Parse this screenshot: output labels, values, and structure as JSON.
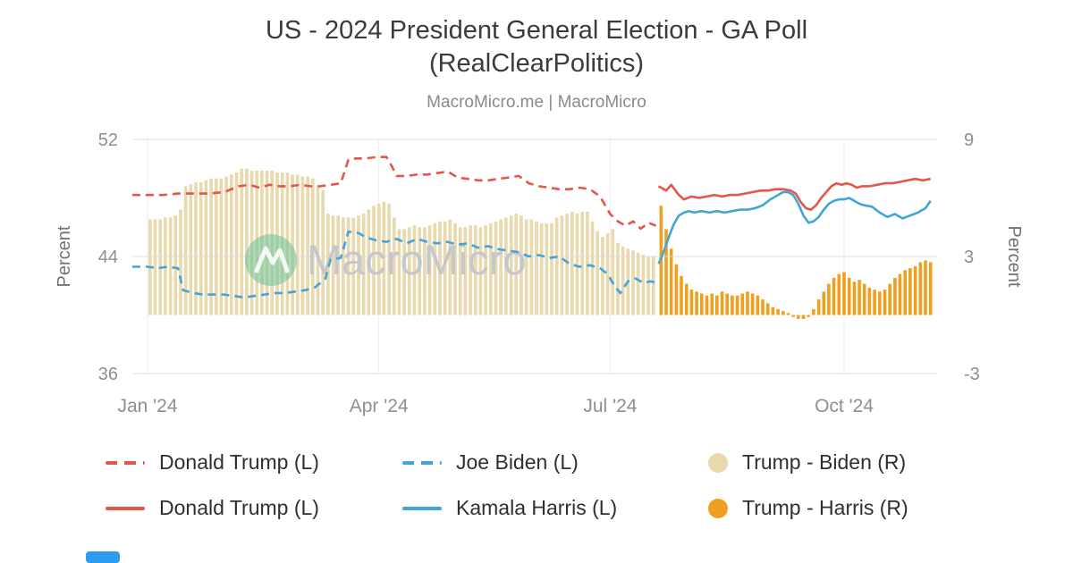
{
  "page": {
    "title_line1": "US - 2024 President General Election - GA Poll",
    "title_line2": "(RealClearPolitics)",
    "subtitle": "MacroMicro.me | MacroMicro",
    "watermark": "MacroMicro"
  },
  "chart_data": {
    "type": "line+bar",
    "title": "US - 2024 President General Election - GA Poll (RealClearPolitics)",
    "x_axis": {
      "unit": "days_from_2024-01-01",
      "ticks": [
        {
          "day": 0,
          "label": "Jan '24"
        },
        {
          "day": 91,
          "label": "Apr '24"
        },
        {
          "day": 182,
          "label": "Jul '24"
        },
        {
          "day": 274,
          "label": "Oct '24"
        }
      ]
    },
    "y_left": {
      "label": "Percent",
      "min": 36,
      "max": 52,
      "ticks": [
        52,
        44,
        36
      ]
    },
    "y_right": {
      "label": "Percent",
      "min": -3,
      "max": 9,
      "ticks": [
        9,
        3,
        -3
      ]
    },
    "series": [
      {
        "id": "trump-biden-spread",
        "name": "Trump - Biden (R)",
        "type": "bar",
        "axis": "right",
        "color": "#ead9ad",
        "start_day": 1,
        "step_days": 2,
        "values": [
          4.9,
          4.9,
          4.9,
          5.0,
          5.0,
          5.1,
          5.4,
          6.6,
          6.7,
          6.8,
          6.8,
          6.9,
          7.0,
          7.0,
          7.0,
          7.1,
          7.2,
          7.3,
          7.5,
          7.5,
          7.4,
          7.4,
          7.4,
          7.4,
          7.4,
          7.3,
          7.3,
          7.3,
          7.2,
          7.2,
          7.1,
          7.1,
          7.0,
          6.6,
          6.4,
          5.2,
          5.1,
          5.1,
          5.0,
          5.0,
          5.0,
          5.1,
          5.2,
          5.4,
          5.6,
          5.7,
          5.8,
          5.7,
          5.0,
          4.4,
          4.4,
          4.5,
          4.6,
          4.5,
          4.5,
          4.6,
          4.7,
          4.8,
          4.8,
          4.9,
          4.7,
          4.5,
          4.5,
          4.6,
          4.6,
          4.5,
          4.6,
          4.7,
          4.8,
          4.9,
          5.0,
          5.1,
          5.2,
          5.1,
          4.9,
          4.9,
          4.8,
          4.7,
          4.7,
          4.7,
          5.0,
          5.1,
          5.2,
          5.3,
          5.2,
          5.3,
          5.3,
          4.8,
          4.3,
          4.0,
          4.2,
          4.4,
          3.7,
          3.5,
          3.4,
          3.3,
          3.2,
          3.1,
          3.0,
          3.0
        ]
      },
      {
        "id": "trump-harris-spread",
        "name": "Trump - Harris (R)",
        "type": "bar",
        "axis": "right",
        "color": "#efa020",
        "start_day": 202,
        "step_days": 2,
        "values": [
          5.6,
          4.4,
          3.4,
          2.6,
          2.0,
          1.6,
          1.3,
          1.2,
          1.1,
          1.0,
          1.1,
          1.0,
          1.2,
          1.1,
          1.0,
          1.0,
          1.1,
          1.2,
          1.1,
          1.0,
          0.8,
          0.6,
          0.4,
          0.3,
          0.2,
          0.1,
          -0.1,
          -0.2,
          -0.2,
          -0.1,
          0.3,
          0.8,
          1.2,
          1.6,
          1.9,
          2.1,
          2.2,
          1.9,
          1.7,
          1.8,
          1.6,
          1.4,
          1.3,
          1.2,
          1.3,
          1.6,
          1.9,
          2.1,
          2.3,
          2.4,
          2.5,
          2.7,
          2.8,
          2.7
        ]
      },
      {
        "id": "trump-dashed",
        "name": "Donald Trump (L)",
        "type": "line",
        "style": "dashed",
        "axis": "left",
        "color": "#e2574a",
        "points": [
          [
            -6,
            48.2
          ],
          [
            0,
            48.2
          ],
          [
            6,
            48.2
          ],
          [
            12,
            48.3
          ],
          [
            18,
            48.3
          ],
          [
            24,
            48.3
          ],
          [
            30,
            48.4
          ],
          [
            36,
            48.8
          ],
          [
            40,
            48.9
          ],
          [
            44,
            48.7
          ],
          [
            48,
            48.9
          ],
          [
            52,
            48.8
          ],
          [
            56,
            48.8
          ],
          [
            60,
            48.9
          ],
          [
            64,
            48.8
          ],
          [
            68,
            48.8
          ],
          [
            72,
            48.9
          ],
          [
            76,
            49.0
          ],
          [
            79,
            50.6
          ],
          [
            82,
            50.7
          ],
          [
            86,
            50.7
          ],
          [
            90,
            50.8
          ],
          [
            94,
            50.8
          ],
          [
            96,
            50.2
          ],
          [
            98,
            49.5
          ],
          [
            102,
            49.5
          ],
          [
            106,
            49.6
          ],
          [
            110,
            49.6
          ],
          [
            114,
            49.7
          ],
          [
            118,
            49.8
          ],
          [
            122,
            49.4
          ],
          [
            126,
            49.3
          ],
          [
            130,
            49.2
          ],
          [
            134,
            49.2
          ],
          [
            138,
            49.3
          ],
          [
            142,
            49.4
          ],
          [
            146,
            49.5
          ],
          [
            150,
            49.0
          ],
          [
            154,
            48.8
          ],
          [
            158,
            48.7
          ],
          [
            162,
            48.6
          ],
          [
            166,
            48.6
          ],
          [
            170,
            48.7
          ],
          [
            174,
            48.6
          ],
          [
            178,
            48.1
          ],
          [
            182,
            46.9
          ],
          [
            185,
            46.4
          ],
          [
            188,
            46.1
          ],
          [
            191,
            46.4
          ],
          [
            194,
            45.9
          ],
          [
            197,
            46.3
          ],
          [
            200,
            46.1
          ]
        ]
      },
      {
        "id": "biden-dashed",
        "name": "Joe Biden (L)",
        "type": "line",
        "style": "dashed",
        "axis": "left",
        "color": "#41a5d6",
        "points": [
          [
            -6,
            43.3
          ],
          [
            0,
            43.3
          ],
          [
            4,
            43.2
          ],
          [
            8,
            43.3
          ],
          [
            12,
            43.2
          ],
          [
            14,
            41.7
          ],
          [
            18,
            41.5
          ],
          [
            22,
            41.4
          ],
          [
            26,
            41.4
          ],
          [
            30,
            41.4
          ],
          [
            34,
            41.3
          ],
          [
            38,
            41.2
          ],
          [
            42,
            41.3
          ],
          [
            46,
            41.4
          ],
          [
            50,
            41.5
          ],
          [
            54,
            41.5
          ],
          [
            58,
            41.6
          ],
          [
            62,
            41.7
          ],
          [
            66,
            41.9
          ],
          [
            70,
            42.5
          ],
          [
            72,
            43.8
          ],
          [
            76,
            43.9
          ],
          [
            79,
            45.7
          ],
          [
            83,
            45.6
          ],
          [
            86,
            45.3
          ],
          [
            90,
            45.1
          ],
          [
            94,
            45.0
          ],
          [
            98,
            45.2
          ],
          [
            102,
            44.9
          ],
          [
            106,
            45.2
          ],
          [
            110,
            45.0
          ],
          [
            114,
            44.9
          ],
          [
            118,
            45.0
          ],
          [
            122,
            44.8
          ],
          [
            126,
            44.9
          ],
          [
            130,
            44.6
          ],
          [
            134,
            44.7
          ],
          [
            138,
            44.5
          ],
          [
            142,
            44.4
          ],
          [
            146,
            44.3
          ],
          [
            150,
            44.0
          ],
          [
            154,
            44.1
          ],
          [
            158,
            43.9
          ],
          [
            162,
            44.0
          ],
          [
            166,
            43.5
          ],
          [
            170,
            43.3
          ],
          [
            174,
            43.4
          ],
          [
            178,
            43.2
          ],
          [
            181,
            42.8
          ],
          [
            184,
            41.9
          ],
          [
            186,
            41.5
          ],
          [
            189,
            42.3
          ],
          [
            192,
            42.5
          ],
          [
            195,
            42.2
          ],
          [
            198,
            42.3
          ],
          [
            200,
            42.2
          ]
        ]
      },
      {
        "id": "trump-solid",
        "name": "Donald Trump (L)",
        "type": "line",
        "style": "solid",
        "axis": "left",
        "color": "#e2574a",
        "points": [
          [
            201,
            48.8
          ],
          [
            204,
            48.5
          ],
          [
            206,
            48.9
          ],
          [
            209,
            48.2
          ],
          [
            211,
            47.9
          ],
          [
            214,
            48.1
          ],
          [
            217,
            48.0
          ],
          [
            220,
            48.1
          ],
          [
            223,
            48.2
          ],
          [
            226,
            48.1
          ],
          [
            229,
            48.2
          ],
          [
            232,
            48.2
          ],
          [
            235,
            48.3
          ],
          [
            238,
            48.4
          ],
          [
            241,
            48.5
          ],
          [
            244,
            48.5
          ],
          [
            247,
            48.6
          ],
          [
            250,
            48.6
          ],
          [
            253,
            48.5
          ],
          [
            255,
            48.3
          ],
          [
            257,
            47.7
          ],
          [
            259,
            47.3
          ],
          [
            261,
            47.2
          ],
          [
            263,
            47.5
          ],
          [
            265,
            48.0
          ],
          [
            267,
            48.4
          ],
          [
            269,
            48.8
          ],
          [
            271,
            49.0
          ],
          [
            273,
            48.9
          ],
          [
            275,
            49.0
          ],
          [
            277,
            48.9
          ],
          [
            279,
            48.7
          ],
          [
            281,
            48.8
          ],
          [
            284,
            48.8
          ],
          [
            287,
            48.9
          ],
          [
            290,
            49.0
          ],
          [
            293,
            49.0
          ],
          [
            296,
            49.1
          ],
          [
            299,
            49.2
          ],
          [
            302,
            49.3
          ],
          [
            305,
            49.2
          ],
          [
            308,
            49.3
          ]
        ]
      },
      {
        "id": "harris-solid",
        "name": "Kamala Harris (L)",
        "type": "line",
        "style": "solid",
        "axis": "left",
        "color": "#41a5d6",
        "points": [
          [
            201,
            43.5
          ],
          [
            203,
            44.3
          ],
          [
            205,
            45.3
          ],
          [
            207,
            46.2
          ],
          [
            209,
            46.8
          ],
          [
            211,
            47.0
          ],
          [
            213,
            47.1
          ],
          [
            215,
            47.0
          ],
          [
            218,
            47.1
          ],
          [
            221,
            47.0
          ],
          [
            224,
            47.1
          ],
          [
            227,
            47.0
          ],
          [
            230,
            47.1
          ],
          [
            233,
            47.2
          ],
          [
            236,
            47.2
          ],
          [
            239,
            47.3
          ],
          [
            242,
            47.5
          ],
          [
            245,
            47.9
          ],
          [
            248,
            48.2
          ],
          [
            250,
            48.4
          ],
          [
            252,
            48.4
          ],
          [
            254,
            48.2
          ],
          [
            256,
            47.6
          ],
          [
            258,
            46.8
          ],
          [
            260,
            46.3
          ],
          [
            262,
            46.4
          ],
          [
            264,
            46.7
          ],
          [
            266,
            47.2
          ],
          [
            268,
            47.6
          ],
          [
            270,
            47.8
          ],
          [
            272,
            47.9
          ],
          [
            274,
            47.9
          ],
          [
            276,
            48.0
          ],
          [
            278,
            47.8
          ],
          [
            280,
            47.6
          ],
          [
            282,
            47.5
          ],
          [
            285,
            47.4
          ],
          [
            288,
            47.0
          ],
          [
            291,
            46.7
          ],
          [
            294,
            46.9
          ],
          [
            297,
            46.6
          ],
          [
            300,
            46.8
          ],
          [
            303,
            47.0
          ],
          [
            306,
            47.3
          ],
          [
            308,
            47.8
          ]
        ]
      }
    ],
    "legend": [
      {
        "id": "trump-dashed",
        "label": "Donald Trump (L)",
        "swatch": "dashed",
        "color": "#e2574a"
      },
      {
        "id": "biden-dashed",
        "label": "Joe Biden (L)",
        "swatch": "dashed",
        "color": "#41a5d6"
      },
      {
        "id": "trump-biden-spread",
        "label": "Trump - Biden (R)",
        "swatch": "circle",
        "color": "#ead9ad"
      },
      {
        "id": "trump-solid",
        "label": "Donald Trump (L)",
        "swatch": "solid",
        "color": "#e2574a"
      },
      {
        "id": "harris-solid",
        "label": "Kamala Harris (L)",
        "swatch": "solid",
        "color": "#41a5d6"
      },
      {
        "id": "trump-harris-spread",
        "label": "Trump - Harris (R)",
        "swatch": "circle",
        "color": "#efa020"
      }
    ]
  }
}
